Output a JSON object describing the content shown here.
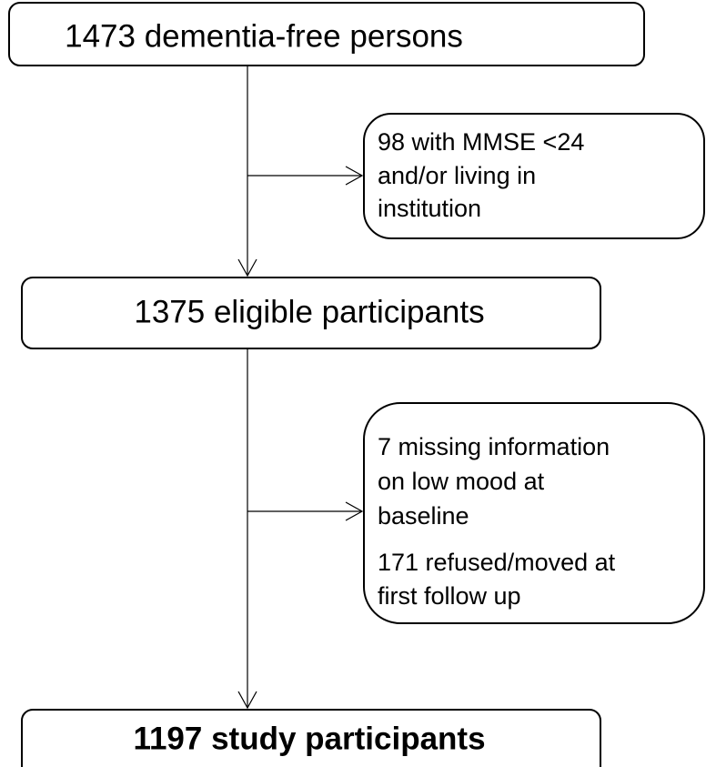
{
  "nodes": [
    {
      "lines": [
        "1473 dementia-free persons"
      ]
    },
    {
      "lines": [
        "98 with MMSE <24",
        "and/or living in",
        "institution"
      ]
    },
    {
      "lines": [
        "1375 eligible participants"
      ]
    },
    {
      "lines": [
        "7 missing information",
        "on low mood at",
        "baseline",
        "171 refused/moved at",
        "first follow up"
      ]
    },
    {
      "lines": [
        "1197 study participants"
      ]
    }
  ]
}
